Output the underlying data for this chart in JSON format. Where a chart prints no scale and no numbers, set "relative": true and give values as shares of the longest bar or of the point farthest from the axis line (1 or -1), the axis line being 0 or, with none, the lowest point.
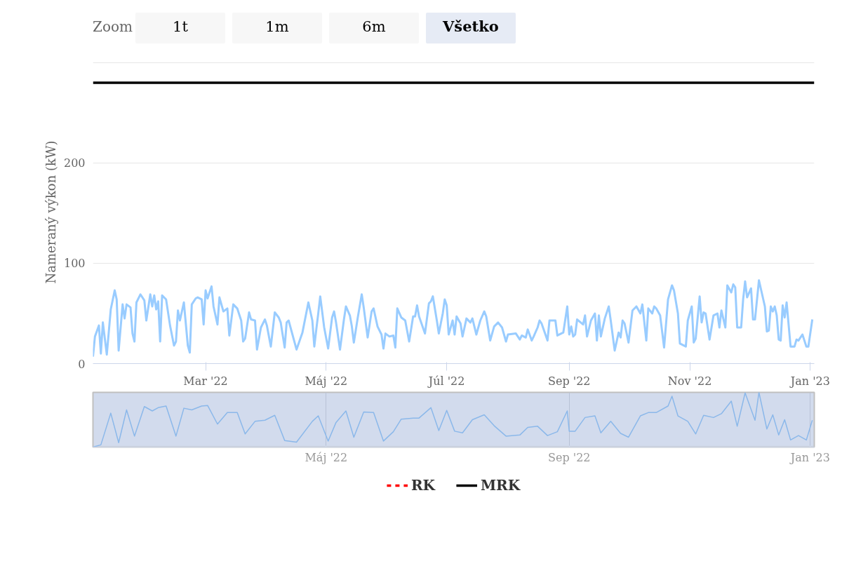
{
  "chart_data": [
    {
      "type": "line",
      "ylabel": "Nameraný výkon (kW)",
      "annotations": [
        "Zoom",
        "1t",
        "1m",
        "6m",
        "Všetko"
      ],
      "xlim": [
        "2022-01-03",
        "2023-01-03"
      ],
      "xticks": [
        {
          "value": "2022-03-01",
          "label": "Mar '22"
        },
        {
          "value": "2022-05-01",
          "label": "Máj '22"
        },
        {
          "value": "2022-07-01",
          "label": "Júl '22"
        },
        {
          "value": "2022-09-01",
          "label": "Sep '22"
        },
        {
          "value": "2022-11-01",
          "label": "Nov '22"
        },
        {
          "value": "2023-01-01",
          "label": "Jan '23"
        }
      ],
      "ylim": [
        0,
        302
      ],
      "yticks": [
        0,
        100,
        200,
        {
          "value": 300,
          "label": null
        }
      ],
      "grid": "y",
      "legend": "bottom",
      "ref_lines": [
        {
          "axis": "y",
          "value": null,
          "label": "RK",
          "color": "#ff0000",
          "line_style": "dashed"
        },
        {
          "axis": "y",
          "value": 280,
          "label": "MRK",
          "color": "#000000"
        }
      ],
      "x": [
        "2022-01-03",
        "2022-01-04",
        "2022-01-06",
        "2022-01-07",
        "2022-01-08",
        "2022-01-10",
        "2022-01-12",
        "2022-01-14",
        "2022-01-15",
        "2022-01-16",
        "2022-01-18",
        "2022-01-19",
        "2022-01-20",
        "2022-01-22",
        "2022-01-23",
        "2022-01-24",
        "2022-01-25",
        "2022-01-27",
        "2022-01-29",
        "2022-01-30",
        "2022-02-01",
        "2022-02-02",
        "2022-02-03",
        "2022-02-04",
        "2022-02-05",
        "2022-02-06",
        "2022-02-07",
        "2022-02-09",
        "2022-02-11",
        "2022-02-13",
        "2022-02-14",
        "2022-02-15",
        "2022-02-16",
        "2022-02-18",
        "2022-02-20",
        "2022-02-21",
        "2022-02-22",
        "2022-02-24",
        "2022-02-25",
        "2022-02-27",
        "2022-02-28",
        "2022-03-01",
        "2022-03-02",
        "2022-03-04",
        "2022-03-05",
        "2022-03-07",
        "2022-03-08",
        "2022-03-10",
        "2022-03-12",
        "2022-03-13",
        "2022-03-15",
        "2022-03-17",
        "2022-03-19",
        "2022-03-20",
        "2022-03-21",
        "2022-03-23",
        "2022-03-24",
        "2022-03-26",
        "2022-03-27",
        "2022-03-29",
        "2022-03-31",
        "2022-04-01",
        "2022-04-03",
        "2022-04-05",
        "2022-04-07",
        "2022-04-08",
        "2022-04-10",
        "2022-04-11",
        "2022-04-12",
        "2022-04-16",
        "2022-04-19",
        "2022-04-22",
        "2022-04-24",
        "2022-04-25",
        "2022-04-26",
        "2022-04-27",
        "2022-04-28",
        "2022-04-30",
        "2022-05-02",
        "2022-05-04",
        "2022-05-05",
        "2022-05-06",
        "2022-05-08",
        "2022-05-10",
        "2022-05-11",
        "2022-05-13",
        "2022-05-14",
        "2022-05-15",
        "2022-05-17",
        "2022-05-19",
        "2022-05-20",
        "2022-05-22",
        "2022-05-24",
        "2022-05-25",
        "2022-05-27",
        "2022-05-29",
        "2022-05-30",
        "2022-05-31",
        "2022-06-02",
        "2022-06-04",
        "2022-06-05",
        "2022-06-06",
        "2022-06-08",
        "2022-06-10",
        "2022-06-12",
        "2022-06-14",
        "2022-06-15",
        "2022-06-16",
        "2022-06-17",
        "2022-06-20",
        "2022-06-22",
        "2022-06-23",
        "2022-06-24",
        "2022-06-26",
        "2022-06-27",
        "2022-06-29",
        "2022-06-30",
        "2022-07-01",
        "2022-07-02",
        "2022-07-04",
        "2022-07-05",
        "2022-07-06",
        "2022-07-08",
        "2022-07-09",
        "2022-07-11",
        "2022-07-13",
        "2022-07-14",
        "2022-07-16",
        "2022-07-18",
        "2022-07-20",
        "2022-07-21",
        "2022-07-23",
        "2022-07-25",
        "2022-07-27",
        "2022-07-29",
        "2022-07-31",
        "2022-08-01",
        "2022-08-05",
        "2022-08-07",
        "2022-08-08",
        "2022-08-10",
        "2022-08-11",
        "2022-08-13",
        "2022-08-14",
        "2022-08-16",
        "2022-08-17",
        "2022-08-18",
        "2022-08-21",
        "2022-08-22",
        "2022-08-25",
        "2022-08-26",
        "2022-08-29",
        "2022-08-31",
        "2022-09-01",
        "2022-09-02",
        "2022-09-03",
        "2022-09-04",
        "2022-09-05",
        "2022-09-08",
        "2022-09-09",
        "2022-09-10",
        "2022-09-12",
        "2022-09-14",
        "2022-09-15",
        "2022-09-16",
        "2022-09-17",
        "2022-09-19",
        "2022-09-21",
        "2022-09-22",
        "2022-09-24",
        "2022-09-26",
        "2022-09-27",
        "2022-09-28",
        "2022-09-29",
        "2022-10-01",
        "2022-10-03",
        "2022-10-05",
        "2022-10-07",
        "2022-10-08",
        "2022-10-10",
        "2022-10-11",
        "2022-10-13",
        "2022-10-14",
        "2022-10-15",
        "2022-10-17",
        "2022-10-19",
        "2022-10-21",
        "2022-10-23",
        "2022-10-24",
        "2022-10-26",
        "2022-10-27",
        "2022-10-30",
        "2022-10-31",
        "2022-11-02",
        "2022-11-03",
        "2022-11-04",
        "2022-11-06",
        "2022-11-07",
        "2022-11-08",
        "2022-11-09",
        "2022-11-11",
        "2022-11-13",
        "2022-11-15",
        "2022-11-16",
        "2022-11-17",
        "2022-11-19",
        "2022-11-20",
        "2022-11-22",
        "2022-11-23",
        "2022-11-24",
        "2022-11-25",
        "2022-11-27",
        "2022-11-28",
        "2022-11-29",
        "2022-11-30",
        "2022-12-02",
        "2022-12-03",
        "2022-12-04",
        "2022-12-06",
        "2022-12-09",
        "2022-12-10",
        "2022-12-11",
        "2022-12-12",
        "2022-12-13",
        "2022-12-14",
        "2022-12-15",
        "2022-12-16",
        "2022-12-17",
        "2022-12-18",
        "2022-12-19",
        "2022-12-20",
        "2022-12-21",
        "2022-12-22",
        "2022-12-24",
        "2022-12-25",
        "2022-12-26",
        "2022-12-28",
        "2022-12-29",
        "2022-12-30",
        "2022-12-31",
        "2023-01-02"
      ],
      "series": [
        {
          "color": "#99ccff",
          "values": [
            7,
            27,
            38,
            10,
            41,
            9,
            54,
            73,
            64,
            13,
            59,
            45,
            59,
            56,
            30,
            22,
            61,
            69,
            63,
            43,
            69,
            57,
            68,
            54,
            62,
            22,
            68,
            64,
            38,
            18,
            22,
            53,
            43,
            61,
            18,
            11,
            59,
            65,
            66,
            64,
            39,
            73,
            65,
            77,
            57,
            39,
            66,
            52,
            55,
            28,
            59,
            55,
            43,
            22,
            25,
            51,
            44,
            43,
            14,
            36,
            44,
            38,
            17,
            51,
            46,
            41,
            16,
            41,
            43,
            14,
            31,
            61,
            43,
            17,
            34,
            50,
            67,
            36,
            15,
            46,
            52,
            41,
            14,
            44,
            57,
            48,
            37,
            21,
            46,
            69,
            56,
            26,
            52,
            55,
            37,
            29,
            15,
            30,
            27,
            28,
            16,
            55,
            46,
            43,
            22,
            47,
            47,
            58,
            47,
            30,
            60,
            62,
            67,
            43,
            30,
            50,
            64,
            58,
            29,
            43,
            29,
            47,
            40,
            27,
            45,
            41,
            45,
            29,
            43,
            52,
            47,
            23,
            37,
            41,
            36,
            22,
            29,
            30,
            24,
            28,
            26,
            34,
            23,
            27,
            36,
            43,
            40,
            23,
            43,
            43,
            28,
            31,
            57,
            29,
            37,
            27,
            29,
            44,
            39,
            48,
            27,
            43,
            50,
            23,
            48,
            27,
            45,
            57,
            43,
            13,
            31,
            26,
            43,
            40,
            21,
            53,
            57,
            50,
            59,
            23,
            55,
            50,
            57,
            55,
            48,
            16,
            64,
            78,
            73,
            50,
            20,
            17,
            43,
            57,
            21,
            25,
            67,
            41,
            51,
            50,
            24,
            48,
            50,
            36,
            53,
            36,
            78,
            71,
            79,
            76,
            36,
            36,
            64,
            82,
            66,
            75,
            44,
            44,
            83,
            57,
            32,
            33,
            57,
            52,
            57,
            48,
            24,
            23,
            58,
            46,
            61,
            39,
            17,
            17,
            24,
            23,
            29,
            23,
            17,
            17,
            44
          ]
        }
      ]
    },
    {
      "type": "line",
      "xlim": [
        "2022-01-03",
        "2023-01-03"
      ],
      "xticks": [
        {
          "value": "2022-05-01",
          "label": "Máj '22"
        },
        {
          "value": "2022-09-01",
          "label": "Sep '22"
        },
        {
          "value": "2023-01-01",
          "label": "Jan '23"
        }
      ],
      "grid": "x",
      "relative": true,
      "series": [
        {
          "color": "#8bb8ea",
          "x": [
            "2022-01-03",
            "2022-01-07",
            "2022-01-12",
            "2022-01-16",
            "2022-01-20",
            "2022-01-24",
            "2022-01-29",
            "2022-02-02",
            "2022-02-05",
            "2022-02-09",
            "2022-02-14",
            "2022-02-18",
            "2022-02-22",
            "2022-02-27",
            "2022-03-02",
            "2022-03-07",
            "2022-03-12",
            "2022-03-17",
            "2022-03-21",
            "2022-03-26",
            "2022-03-31",
            "2022-04-05",
            "2022-04-10",
            "2022-04-16",
            "2022-04-24",
            "2022-04-27",
            "2022-05-02",
            "2022-05-06",
            "2022-05-11",
            "2022-05-15",
            "2022-05-20",
            "2022-05-25",
            "2022-05-30",
            "2022-06-04",
            "2022-06-08",
            "2022-06-14",
            "2022-06-17",
            "2022-06-23",
            "2022-06-27",
            "2022-07-01",
            "2022-07-05",
            "2022-07-09",
            "2022-07-14",
            "2022-07-20",
            "2022-07-25",
            "2022-07-31",
            "2022-08-07",
            "2022-08-11",
            "2022-08-16",
            "2022-08-21",
            "2022-08-26",
            "2022-08-31",
            "2022-09-01",
            "2022-09-04",
            "2022-09-09",
            "2022-09-14",
            "2022-09-17",
            "2022-09-22",
            "2022-09-27",
            "2022-10-01",
            "2022-10-07",
            "2022-10-11",
            "2022-10-15",
            "2022-10-21",
            "2022-10-23",
            "2022-10-26",
            "2022-10-31",
            "2022-11-04",
            "2022-11-08",
            "2022-11-13",
            "2022-11-17",
            "2022-11-22",
            "2022-11-25",
            "2022-11-29",
            "2022-12-04",
            "2022-12-06",
            "2022-12-10",
            "2022-12-13",
            "2022-12-16",
            "2022-12-19",
            "2022-12-22",
            "2022-12-26",
            "2022-12-30",
            "2023-01-02"
          ],
          "values": [
            0,
            0.04,
            0.62,
            0.08,
            0.68,
            0.2,
            0.74,
            0.66,
            0.72,
            0.75,
            0.2,
            0.71,
            0.68,
            0.75,
            0.76,
            0.42,
            0.63,
            0.63,
            0.24,
            0.47,
            0.49,
            0.58,
            0.12,
            0.09,
            0.47,
            0.57,
            0.11,
            0.45,
            0.66,
            0.18,
            0.64,
            0.63,
            0.11,
            0.28,
            0.51,
            0.53,
            0.53,
            0.72,
            0.3,
            0.67,
            0.29,
            0.26,
            0.5,
            0.59,
            0.39,
            0.2,
            0.22,
            0.36,
            0.38,
            0.21,
            0.28,
            0.66,
            0.29,
            0.29,
            0.54,
            0.57,
            0.26,
            0.47,
            0.25,
            0.18,
            0.57,
            0.63,
            0.63,
            0.75,
            0.93,
            0.57,
            0.47,
            0.24,
            0.58,
            0.54,
            0.61,
            0.84,
            0.38,
            0.99,
            0.49,
            1,
            0.33,
            0.59,
            0.22,
            0.5,
            0.13,
            0.21,
            0.13,
            0.49
          ]
        }
      ]
    }
  ]
}
